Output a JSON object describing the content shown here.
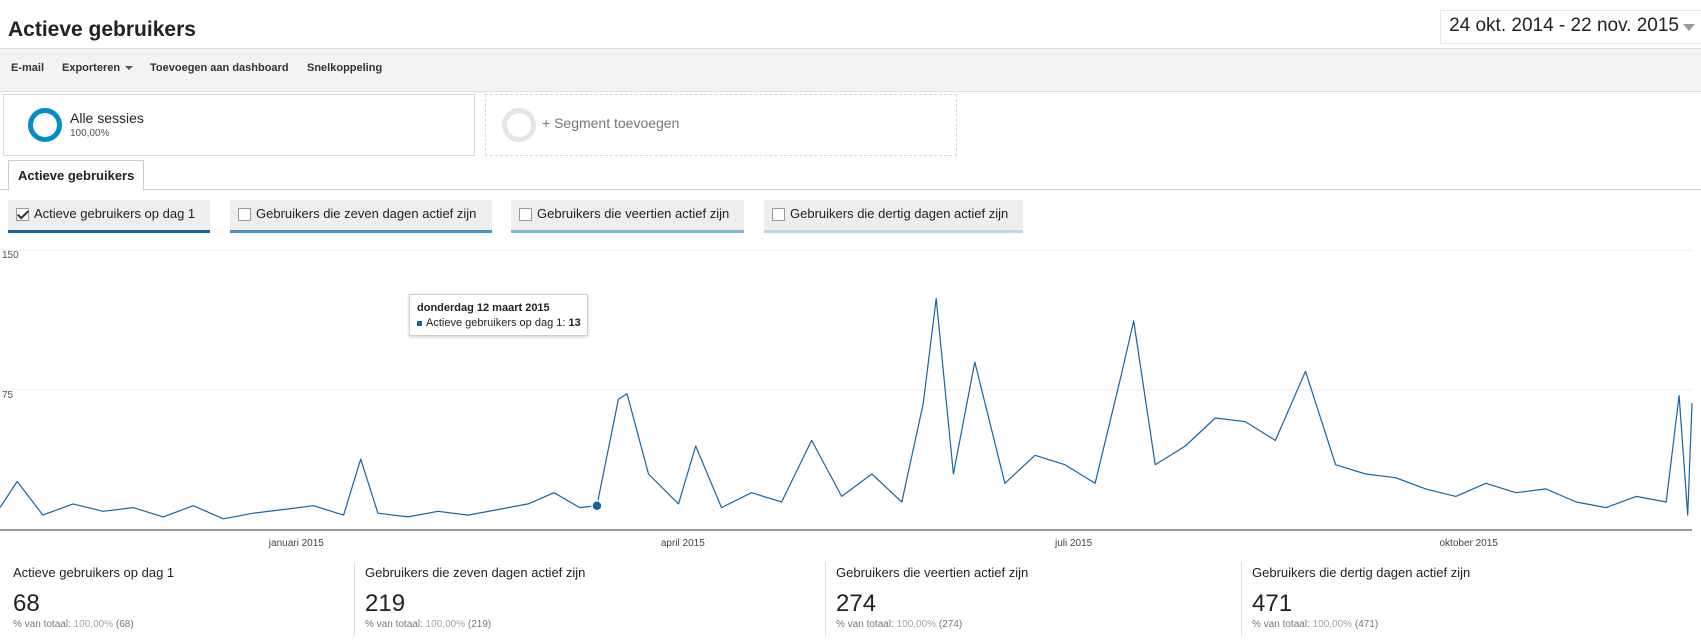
{
  "header": {
    "title": "Actieve gebruikers",
    "date_range": "24 okt. 2014 - 22 nov. 2015"
  },
  "toolbar": {
    "email": "E-mail",
    "export": "Exporteren",
    "add_dashboard": "Toevoegen aan dashboard",
    "shortcut": "Snelkoppeling"
  },
  "segments": {
    "active_name": "Alle sessies",
    "active_pct": "100,00%",
    "add_label": "+ Segment toevoegen"
  },
  "tab": {
    "label": "Actieve gebruikers"
  },
  "metrics": [
    {
      "label": "Actieve gebruikers op dag 1",
      "checked": true,
      "color": "#1864a3"
    },
    {
      "label": "Gebruikers die zeven dagen actief zijn",
      "checked": false,
      "color": "#4494c8"
    },
    {
      "label": "Gebruikers die veertien actief zijn",
      "checked": false,
      "color": "#7ab8dd"
    },
    {
      "label": "Gebruikers die dertig dagen actief zijn",
      "checked": false,
      "color": "#b7d9ee"
    }
  ],
  "tooltip": {
    "date": "donderdag 12 maart 2015",
    "series": "Actieve gebruikers op dag 1:",
    "value": "13"
  },
  "chart_data": {
    "type": "line",
    "title": "",
    "xlabel": "",
    "ylabel": "",
    "ylim": [
      0,
      150
    ],
    "yticks": [
      "150",
      "75"
    ],
    "xticks": [
      "januari 2015",
      "april 2015",
      "juli 2015",
      "oktober 2015"
    ],
    "x_range": [
      "2014-10-24",
      "2015-11-22"
    ],
    "line_color": "#1864a3",
    "highlight": {
      "date": "2015-03-12",
      "value": 13
    },
    "series": [
      {
        "name": "Actieve gebruikers op dag 1",
        "points": [
          [
            "2014-10-24",
            12
          ],
          [
            "2014-10-28",
            26
          ],
          [
            "2014-11-03",
            8
          ],
          [
            "2014-11-10",
            14
          ],
          [
            "2014-11-17",
            10
          ],
          [
            "2014-11-24",
            12
          ],
          [
            "2014-12-01",
            7
          ],
          [
            "2014-12-08",
            13
          ],
          [
            "2014-12-15",
            6
          ],
          [
            "2014-12-22",
            9
          ],
          [
            "2014-12-29",
            11
          ],
          [
            "2015-01-05",
            13
          ],
          [
            "2015-01-12",
            8
          ],
          [
            "2015-01-16",
            38
          ],
          [
            "2015-01-20",
            9
          ],
          [
            "2015-01-27",
            7
          ],
          [
            "2015-02-03",
            10
          ],
          [
            "2015-02-10",
            8
          ],
          [
            "2015-02-17",
            11
          ],
          [
            "2015-02-24",
            14
          ],
          [
            "2015-03-02",
            20
          ],
          [
            "2015-03-08",
            12
          ],
          [
            "2015-03-12",
            13
          ],
          [
            "2015-03-17",
            70
          ],
          [
            "2015-03-19",
            73
          ],
          [
            "2015-03-24",
            30
          ],
          [
            "2015-03-31",
            14
          ],
          [
            "2015-04-04",
            45
          ],
          [
            "2015-04-10",
            12
          ],
          [
            "2015-04-17",
            20
          ],
          [
            "2015-04-24",
            15
          ],
          [
            "2015-05-01",
            48
          ],
          [
            "2015-05-08",
            18
          ],
          [
            "2015-05-15",
            30
          ],
          [
            "2015-05-22",
            15
          ],
          [
            "2015-05-27",
            68
          ],
          [
            "2015-05-30",
            124
          ],
          [
            "2015-06-03",
            30
          ],
          [
            "2015-06-08",
            90
          ],
          [
            "2015-06-15",
            25
          ],
          [
            "2015-06-22",
            40
          ],
          [
            "2015-06-29",
            35
          ],
          [
            "2015-07-06",
            25
          ],
          [
            "2015-07-12",
            82
          ],
          [
            "2015-07-15",
            112
          ],
          [
            "2015-07-20",
            35
          ],
          [
            "2015-07-27",
            45
          ],
          [
            "2015-08-03",
            60
          ],
          [
            "2015-08-10",
            58
          ],
          [
            "2015-08-17",
            48
          ],
          [
            "2015-08-24",
            85
          ],
          [
            "2015-08-31",
            35
          ],
          [
            "2015-09-07",
            30
          ],
          [
            "2015-09-14",
            28
          ],
          [
            "2015-09-21",
            22
          ],
          [
            "2015-09-28",
            18
          ],
          [
            "2015-10-05",
            25
          ],
          [
            "2015-10-12",
            20
          ],
          [
            "2015-10-19",
            22
          ],
          [
            "2015-10-26",
            15
          ],
          [
            "2015-11-02",
            12
          ],
          [
            "2015-11-09",
            18
          ],
          [
            "2015-11-16",
            15
          ],
          [
            "2015-11-19",
            72
          ],
          [
            "2015-11-21",
            8
          ],
          [
            "2015-11-22",
            68
          ]
        ]
      }
    ]
  },
  "scorecards": [
    {
      "name": "Actieve gebruikers op dag 1",
      "value": "68",
      "sub_prefix": "% van totaal:",
      "sub_pct": "100,00%",
      "sub_abs": "(68)"
    },
    {
      "name": "Gebruikers die zeven dagen actief zijn",
      "value": "219",
      "sub_prefix": "% van totaal:",
      "sub_pct": "100,00%",
      "sub_abs": "(219)"
    },
    {
      "name": "Gebruikers die veertien actief zijn",
      "value": "274",
      "sub_prefix": "% van totaal:",
      "sub_pct": "100,00%",
      "sub_abs": "(274)"
    },
    {
      "name": "Gebruikers die dertig dagen actief zijn",
      "value": "471",
      "sub_prefix": "% van totaal:",
      "sub_pct": "100,00%",
      "sub_abs": "(471)"
    }
  ]
}
